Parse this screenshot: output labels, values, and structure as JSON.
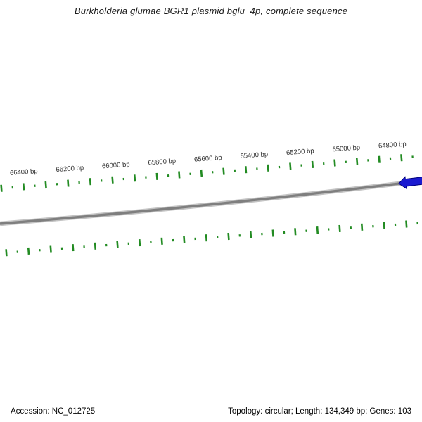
{
  "title": "Burkholderia glumae BGR1 plasmid bglu_4p, complete sequence",
  "ruler": {
    "unit": "bp",
    "label_interval_bp": 200,
    "labels": [
      {
        "bp": 66400,
        "text": "66400 bp"
      },
      {
        "bp": 66200,
        "text": "66200 bp"
      },
      {
        "bp": 66000,
        "text": "66000 bp"
      },
      {
        "bp": 65800,
        "text": "65800 bp"
      },
      {
        "bp": 65600,
        "text": "65600 bp"
      },
      {
        "bp": 65400,
        "text": "65400 bp"
      },
      {
        "bp": 65200,
        "text": "65200 bp"
      },
      {
        "bp": 65000,
        "text": "65000 bp"
      },
      {
        "bp": 64800,
        "text": "64800 bp"
      }
    ]
  },
  "colors": {
    "background": "#ffffff",
    "backbone_gray": "#7f7f7f",
    "backbone_halo": "#c3c3c3",
    "tick_green": "#228b22",
    "label_text": "#333333",
    "feature_blue": "#1a1ad1",
    "feature_outline": "#00007e",
    "title_text": "#1a1a1a",
    "status_text": "#000000"
  },
  "status_bar": {
    "left": "Accession: NC_012725",
    "right": "Topology: circular; Length: 134,349 bp; Genes: 103"
  }
}
